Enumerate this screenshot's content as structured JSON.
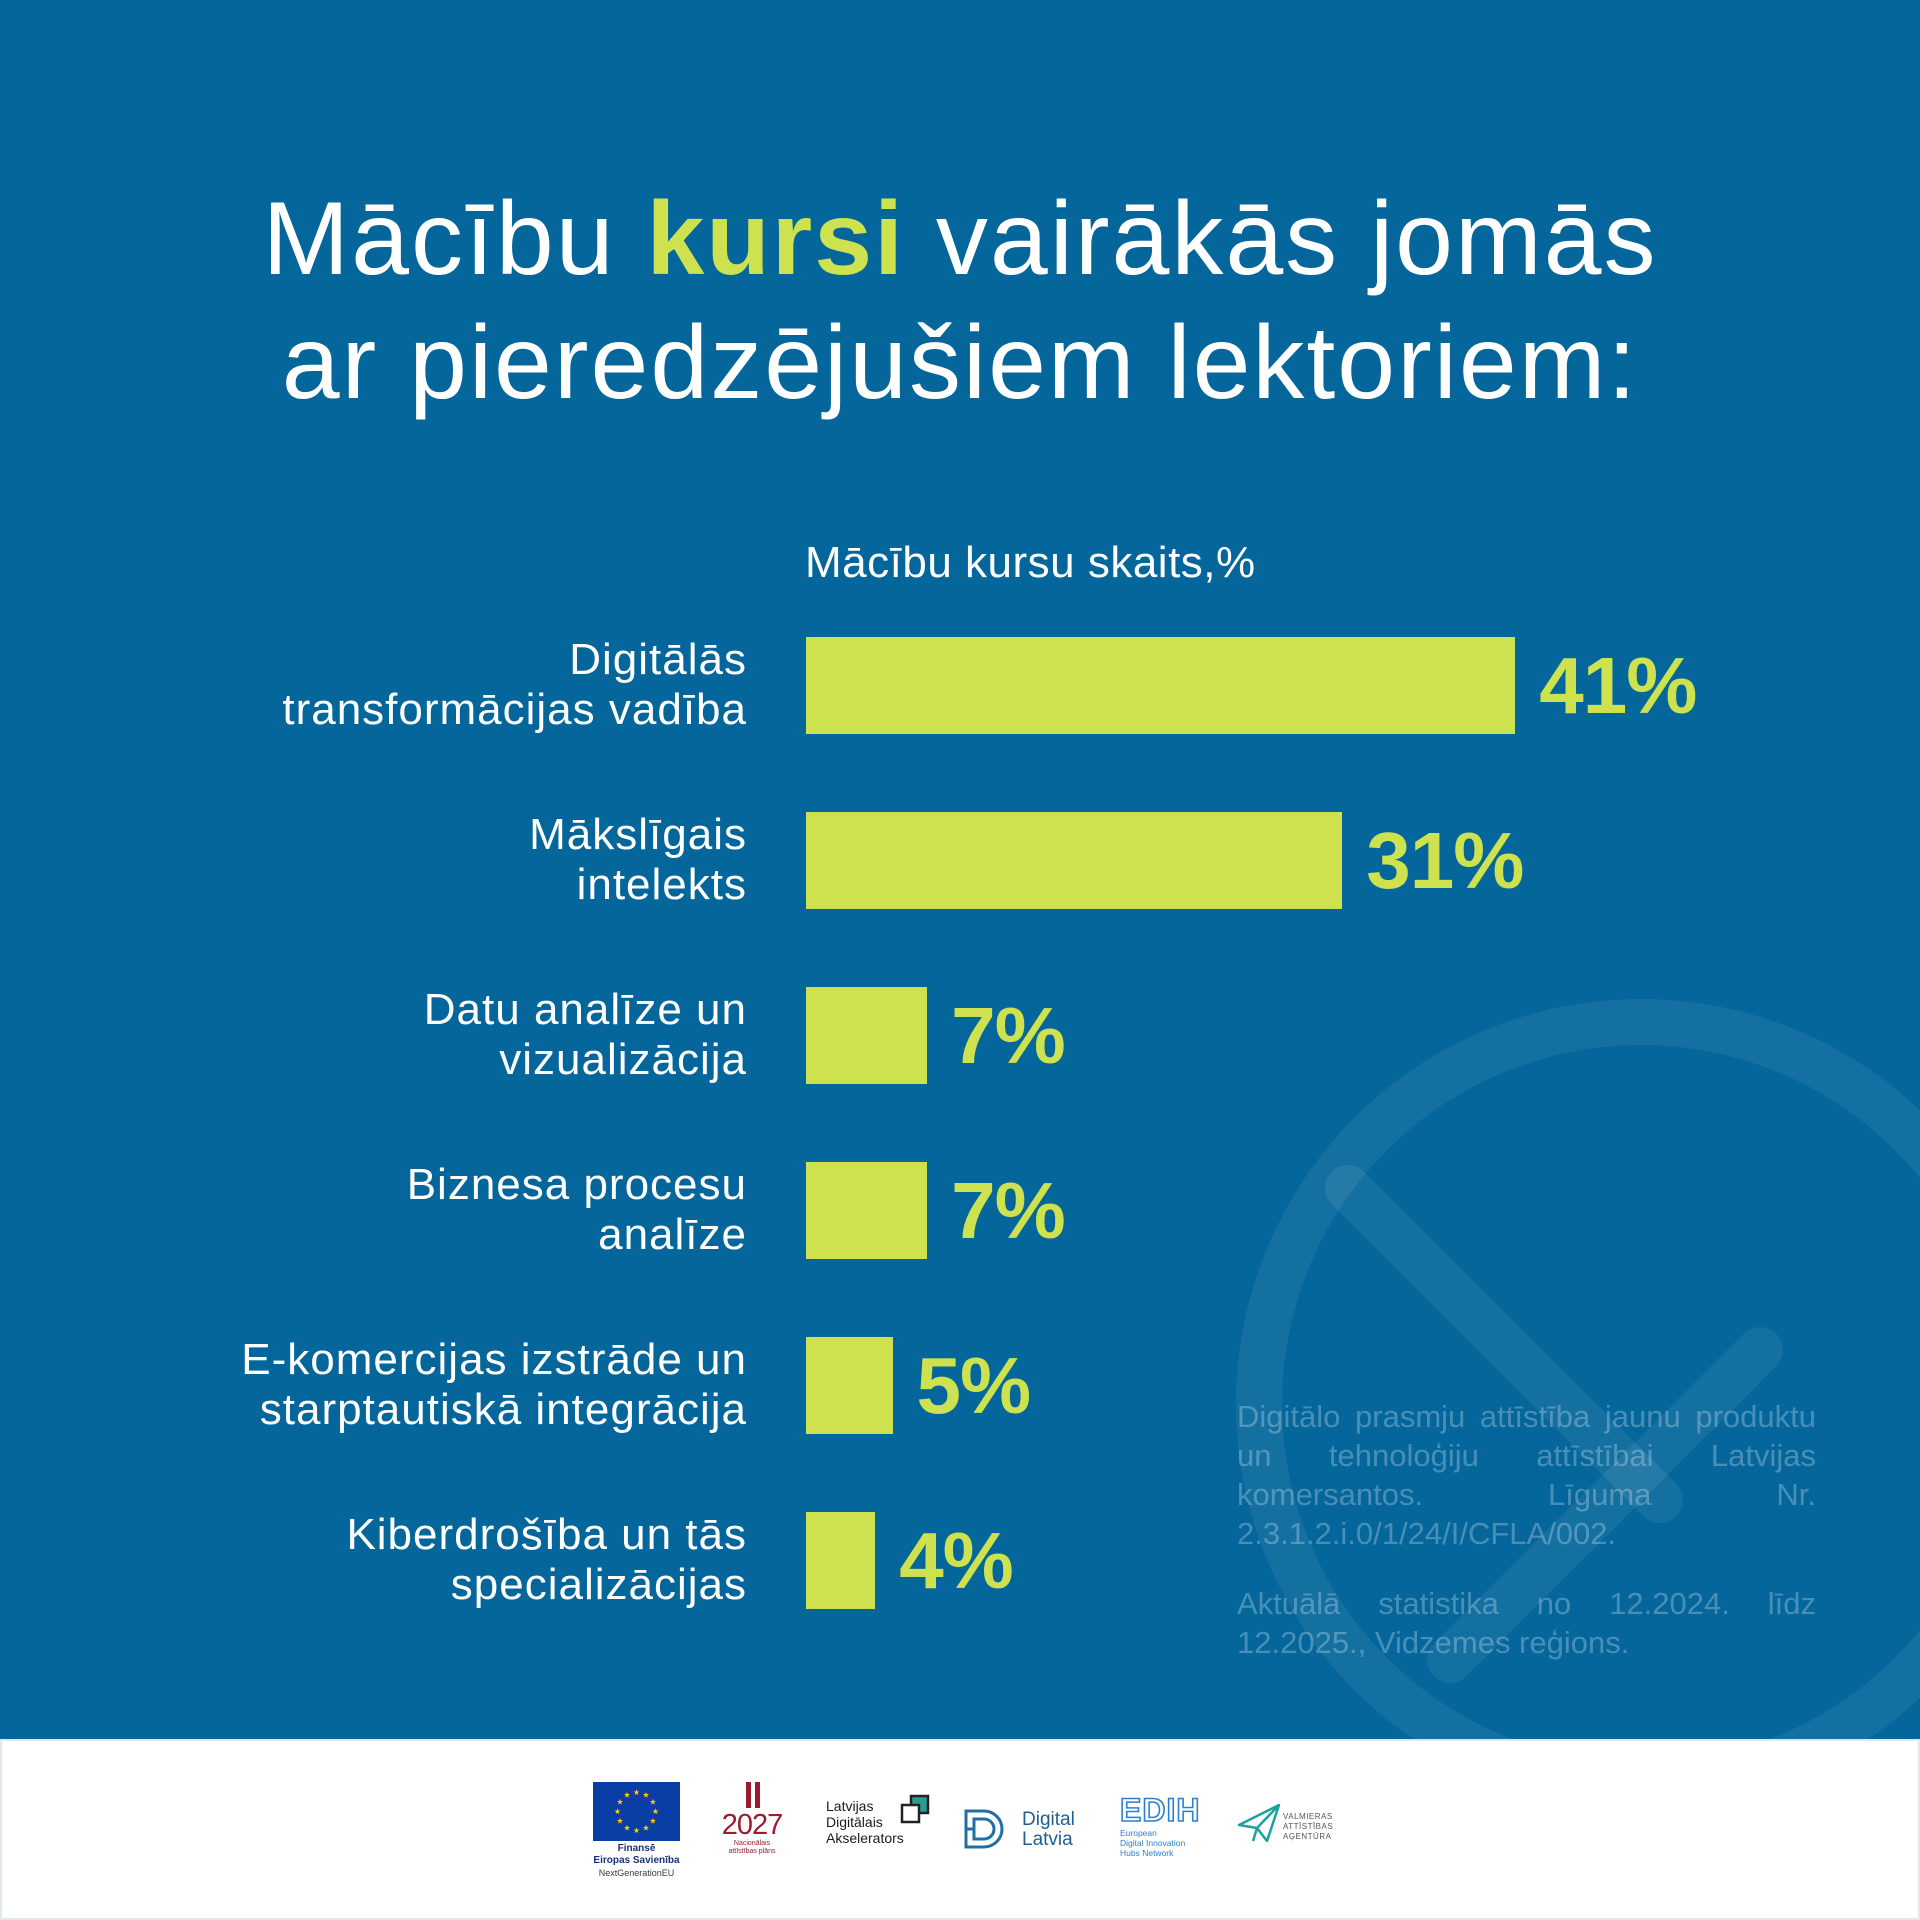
{
  "colors": {
    "background": "#04669b",
    "accent": "#cde24e",
    "text": "#ffffff",
    "footer": "#ffffff",
    "eu_blue": "#0a3ea4",
    "eu_star": "#ffcc00",
    "nap_red": "#9b1b30"
  },
  "title": {
    "line1_pre": "Mācību",
    "highlight": "kursi",
    "line1_post": "vairākās jomās",
    "line2": "ar pieredzējušiem lektoriem:"
  },
  "chart_data": {
    "type": "bar",
    "orientation": "horizontal",
    "title": "Mācību kursu skaits,%",
    "unit": "%",
    "categories": [
      "Digitālās\ntransformācijas vadība",
      "Mākslīgais\nintelekts",
      "Datu analīze un\nvizualizācija",
      "Biznesa procesu\nanalīze",
      "E-komercijas izstrāde un\nstarptautiskā integrācija",
      "Kiberdrošība un tās\nspecializācijas"
    ],
    "values": [
      41,
      31,
      7,
      7,
      5,
      4
    ],
    "data_labels": [
      "41%",
      "31%",
      "7%",
      "7%",
      "5%",
      "4%"
    ],
    "xlabel": "",
    "ylabel": "",
    "grid": false,
    "legend": "none"
  },
  "note": {
    "paragraph1": "Digitālo prasmju attīstība jaunu produktu un tehnoloģiju attīstībai Latvijas komersantos. Līguma Nr. 2.3.1.2.i.0/1/24/I/CFLA/002.",
    "paragraph2": "Aktuālā statistika no 12.2024. līdz 12.2025., Vidzemes reģions."
  },
  "footer": {
    "eu": {
      "line1": "Finansē",
      "line2": "Eiropas Savienība",
      "line3": "NextGenerationEU"
    },
    "nap": {
      "year": "2027",
      "line1": "Nacionālais",
      "line2": "attīstības plāns"
    },
    "lda": {
      "line1": "Latvijas",
      "line2": "Digitālais",
      "line3": "Akselerators"
    },
    "digital_latvia": {
      "line1": "Digital",
      "line2": "Latvia"
    },
    "edih": {
      "mark": "EDIH",
      "line1": "European",
      "line2": "Digital Innovation",
      "line3": "Hubs Network"
    },
    "vaa": {
      "line1": "VALMIERAS",
      "line2": "ATTĪSTĪBAS",
      "line3": "AĢENTŪRA"
    }
  }
}
